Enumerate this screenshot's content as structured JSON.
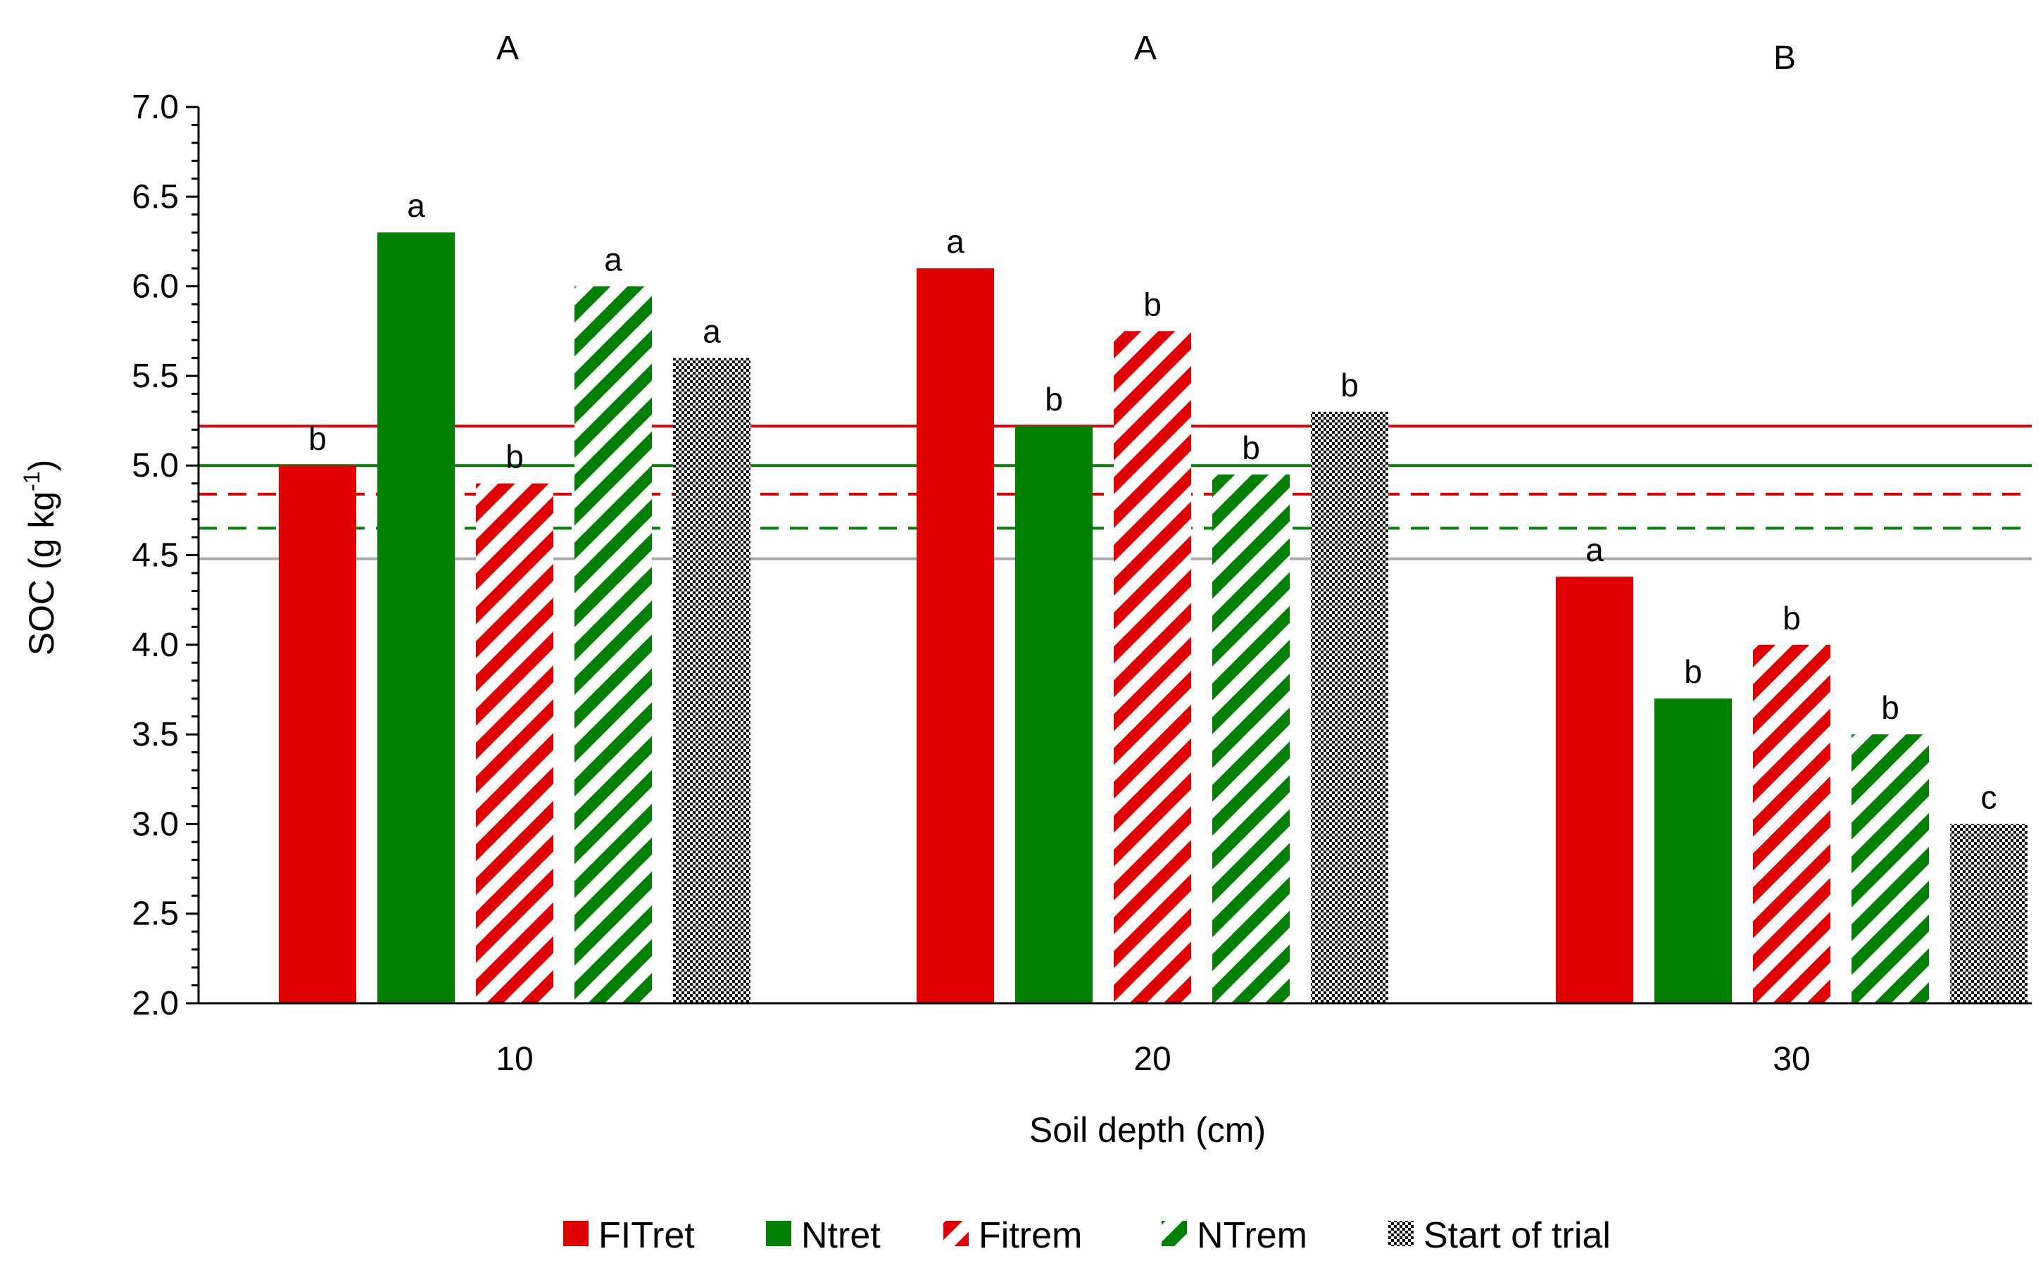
{
  "chart_data": {
    "type": "bar",
    "xlabel": "Soil depth (cm)",
    "ylabel_main": "SOC (g kg",
    "ylabel_sup": "-1",
    "ylabel_close": ")",
    "ylim": [
      2.0,
      7.0
    ],
    "yticks": [
      "2.0",
      "2.5",
      "3.0",
      "3.5",
      "4.0",
      "4.5",
      "5.0",
      "5.5",
      "6.0",
      "6.5",
      "7.0"
    ],
    "categories": [
      "10",
      "20",
      "30"
    ],
    "group_letters": [
      "A",
      "A",
      "B"
    ],
    "series": [
      {
        "name": "FITret",
        "color": "#e00000",
        "pattern": "solid",
        "values": [
          5.0,
          6.1,
          4.38
        ],
        "letters": [
          "b",
          "a",
          "a"
        ]
      },
      {
        "name": "Ntret",
        "color": "#008000",
        "pattern": "solid",
        "values": [
          6.3,
          5.22,
          3.7
        ],
        "letters": [
          "a",
          "b",
          "b"
        ]
      },
      {
        "name": "Fitrem",
        "color": "#e00000",
        "pattern": "hatch",
        "values": [
          4.9,
          5.75,
          4.0
        ],
        "letters": [
          "b",
          "b",
          "b"
        ]
      },
      {
        "name": "NTrem",
        "color": "#008000",
        "pattern": "hatch",
        "values": [
          6.0,
          4.95,
          3.5
        ],
        "letters": [
          "a",
          "b",
          "b"
        ]
      },
      {
        "name": "Start of trial",
        "color": "#000000",
        "pattern": "checker",
        "values": [
          5.6,
          5.3,
          3.0
        ],
        "letters": [
          "a",
          "b",
          "c"
        ]
      }
    ],
    "reference_lines": [
      {
        "value": 5.22,
        "color": "#e00000",
        "style": "solid"
      },
      {
        "value": 5.0,
        "color": "#008000",
        "style": "solid"
      },
      {
        "value": 4.84,
        "color": "#e00000",
        "style": "dashed"
      },
      {
        "value": 4.65,
        "color": "#008000",
        "style": "dashed"
      },
      {
        "value": 4.48,
        "color": "#aaaaaa",
        "style": "solid"
      }
    ],
    "legend": [
      "FITret",
      "Ntret",
      "Fitrem",
      "NTrem",
      "Start of trial"
    ]
  }
}
